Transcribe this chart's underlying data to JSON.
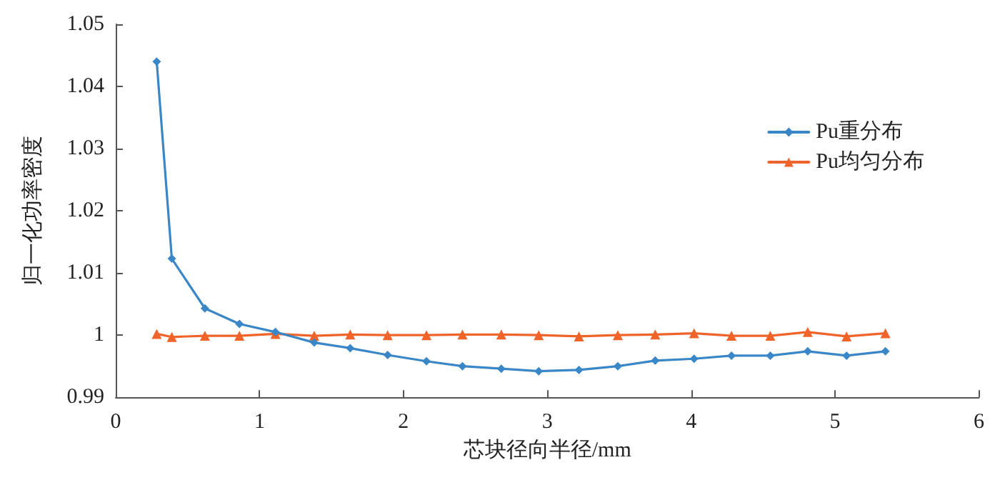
{
  "chart_data": {
    "type": "line",
    "xlabel": "芯块径向半径/mm",
    "ylabel": "归一化功率密度",
    "x": [
      0.285,
      0.39,
      0.62,
      0.86,
      1.11,
      1.38,
      1.63,
      1.89,
      2.16,
      2.41,
      2.68,
      2.94,
      3.22,
      3.49,
      3.75,
      4.02,
      4.28,
      4.55,
      4.81,
      5.08,
      5.35
    ],
    "series": [
      {
        "name": "Pu重分布",
        "color": "#3a87c8",
        "marker": "diamond",
        "values": [
          1.044,
          1.0123,
          1.0043,
          1.0018,
          1.0005,
          0.9988,
          0.9979,
          0.9968,
          0.9958,
          0.995,
          0.9946,
          0.9942,
          0.9944,
          0.995,
          0.9959,
          0.9962,
          0.9967,
          0.9967,
          0.9974,
          0.9967,
          0.9974
        ]
      },
      {
        "name": "Pu均匀分布",
        "color": "#f0642a",
        "marker": "triangle",
        "values": [
          1.0002,
          0.9997,
          0.9999,
          0.9999,
          1.0002,
          0.9999,
          1.0001,
          1.0,
          1.0,
          1.0001,
          1.0001,
          1.0,
          0.9998,
          1.0,
          1.0001,
          1.0003,
          0.9999,
          0.9999,
          1.0005,
          0.9998,
          1.0003
        ]
      }
    ],
    "xlim": [
      0,
      6
    ],
    "xticks": [
      0,
      1,
      2,
      3,
      4,
      5,
      6
    ],
    "ylim": [
      0.99,
      1.05
    ],
    "yticks": [
      0.99,
      1,
      1.01,
      1.02,
      1.03,
      1.04,
      1.05
    ],
    "grid": false,
    "legend": "top right",
    "line_style": "solid"
  }
}
